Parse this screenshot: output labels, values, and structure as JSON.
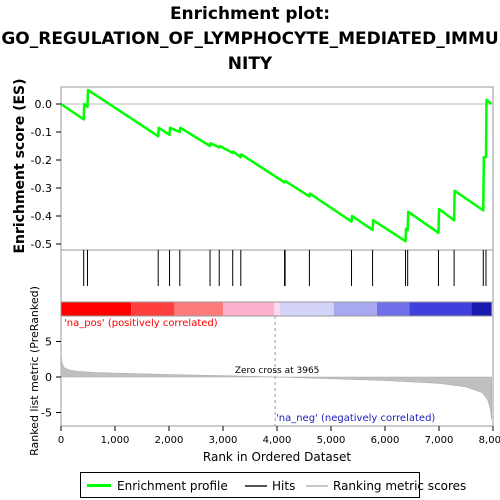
{
  "title": "Enrichment plot:\nGO_REGULATION_OF_LYMPHOCYTE_MEDIATED_IMMU\nNITY",
  "chart_data": [
    {
      "type": "line",
      "ylabel": "Enrichment score (ES)",
      "ylim": [
        -0.52,
        0.08
      ],
      "xlim": [
        0,
        8000
      ],
      "y_ticks": [
        "0.0",
        "-0.1",
        "-0.2",
        "-0.3",
        "-0.4",
        "-0.5"
      ],
      "y_tick_values": [
        0.0,
        -0.1,
        -0.2,
        -0.3,
        -0.4,
        -0.5
      ],
      "series": [
        {
          "name": "Enrichment profile",
          "color": "#00ff00",
          "x": [
            0,
            420,
            430,
            490,
            500,
            1800,
            1810,
            2010,
            2020,
            2200,
            2210,
            2760,
            2770,
            2930,
            2940,
            3180,
            3190,
            3330,
            3340,
            4140,
            4150,
            4600,
            4610,
            5380,
            5390,
            5770,
            5780,
            6380,
            6390,
            6420,
            6430,
            6990,
            7000,
            7280,
            7290,
            7820,
            7830,
            7870,
            7880,
            7970
          ],
          "y": [
            0.0,
            -0.055,
            0.0,
            -0.01,
            0.05,
            -0.115,
            -0.085,
            -0.11,
            -0.085,
            -0.1,
            -0.085,
            -0.15,
            -0.14,
            -0.155,
            -0.15,
            -0.175,
            -0.17,
            -0.19,
            -0.18,
            -0.28,
            -0.275,
            -0.33,
            -0.32,
            -0.42,
            -0.4,
            -0.45,
            -0.415,
            -0.49,
            -0.445,
            -0.45,
            -0.385,
            -0.46,
            -0.375,
            -0.415,
            -0.31,
            -0.38,
            -0.19,
            -0.19,
            0.015,
            0.0
          ]
        }
      ]
    },
    {
      "type": "scatter",
      "name": "hits",
      "series": [
        {
          "name": "Hits",
          "color": "#000000",
          "x": [
            420,
            490,
            1800,
            2010,
            2200,
            2760,
            2930,
            3180,
            3330,
            4140,
            4150,
            4600,
            5380,
            5770,
            6380,
            6420,
            6990,
            7280,
            7820,
            7870
          ]
        }
      ]
    },
    {
      "type": "area",
      "ylabel": "Ranked list metric (PreRanked)",
      "xlabel": "Rank in Ordered Dataset",
      "xlim": [
        0,
        8000
      ],
      "ylim": [
        -6.5,
        10
      ],
      "y_ticks": [
        "5",
        "0",
        "-5"
      ],
      "y_tick_values": [
        5,
        0,
        -5
      ],
      "x_ticks": [
        "0",
        "1,000",
        "2,000",
        "3,000",
        "4,000",
        "5,000",
        "6,000",
        "7,000",
        "8,000"
      ],
      "x_tick_values": [
        0,
        1000,
        2000,
        3000,
        4000,
        5000,
        6000,
        7000,
        8000
      ],
      "series": [
        {
          "name": "Ranking metric scores",
          "color": "#c0c0c0",
          "x": [
            0,
            20,
            60,
            150,
            300,
            600,
            1000,
            2000,
            3000,
            3965,
            5000,
            6000,
            7000,
            7500,
            7800,
            7900,
            7950,
            7975
          ],
          "y": [
            3.5,
            2.0,
            1.3,
            1.0,
            0.8,
            0.65,
            0.55,
            0.35,
            0.2,
            0.0,
            -0.25,
            -0.5,
            -0.9,
            -1.4,
            -2.2,
            -3.2,
            -4.5,
            -6.0
          ]
        }
      ],
      "zero_cross_label": "Zero cross at 3965",
      "zero_cross_x": 3965,
      "pos_label": "'na_pos' (positively correlated)",
      "neg_label": "'na_neg' (negatively correlated)"
    }
  ],
  "heat_band": {
    "colors": [
      "#ff0000",
      "#ff3e3e",
      "#ff7a7a",
      "#ffb0cf",
      "#ffd8ec",
      "#d4d4f8",
      "#a8a8f0",
      "#6f6fe8",
      "#4040dc",
      "#1a1ab0"
    ],
    "x_stops": [
      0,
      1300,
      2100,
      3000,
      3950,
      4050,
      5050,
      5850,
      6450,
      7600,
      7975
    ]
  },
  "legend": {
    "enrichment": "Enrichment profile",
    "hits": "Hits",
    "ranking": "Ranking metric scores"
  }
}
